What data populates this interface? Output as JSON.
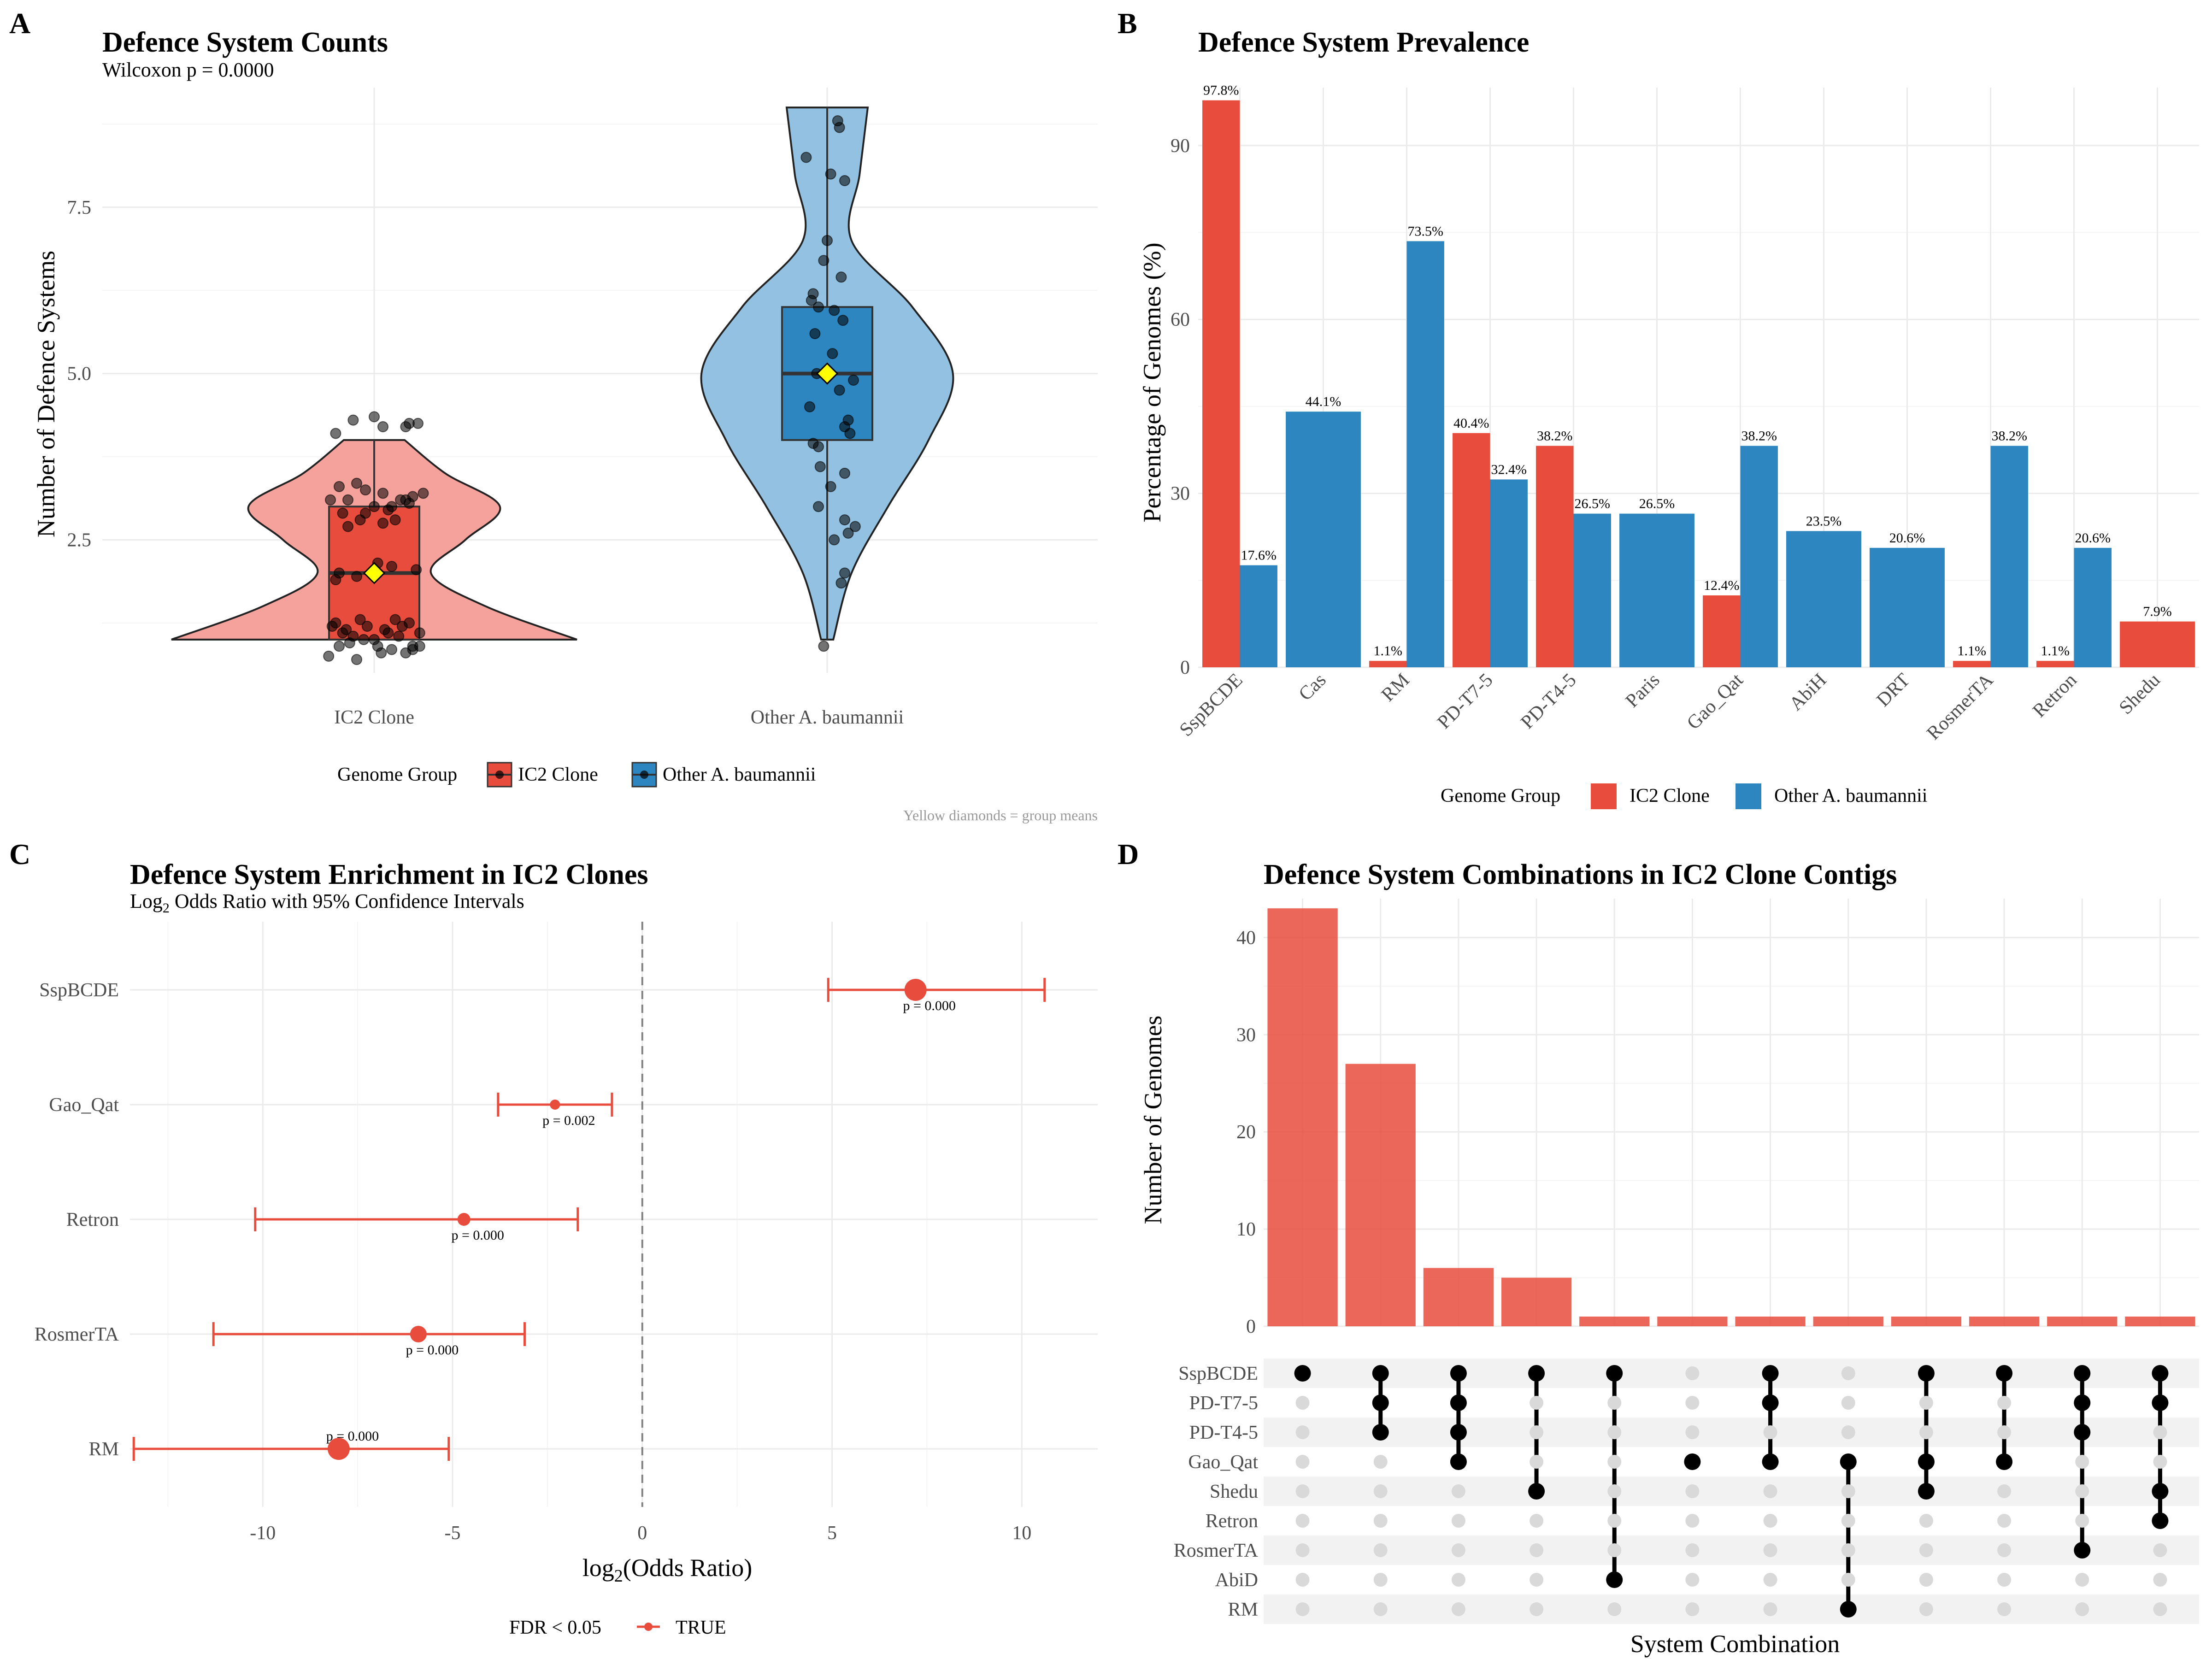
{
  "colors": {
    "ic2": "#e74c3c",
    "other": "#2e86c1",
    "ic2_violin": "#f4a29b",
    "other_violin": "#93c1e2",
    "mean": "#ffff00",
    "dot": "#000000"
  },
  "chart_data": [
    {
      "id": "A",
      "type": "violin",
      "tag": "A",
      "title": "Defence System Counts",
      "subtitle": "Wilcoxon p = 0.0000",
      "xlabel": "",
      "ylabel": "Number of Defence Systems",
      "ylim": [
        0.5,
        9.3
      ],
      "yticks": [
        2.5,
        5.0,
        7.5
      ],
      "ytick_labels": [
        "2.5",
        "5.0",
        "7.5"
      ],
      "categories": [
        "IC2 Clone",
        "Other A. baumannii"
      ],
      "legend_title": "Genome Group",
      "legend_position": "bottom",
      "caption": "Yellow diamonds = group means",
      "groups": [
        {
          "name": "IC2 Clone",
          "min": 1,
          "q1": 1,
          "median": 2,
          "q3": 3,
          "max": 4,
          "mean": 2.0,
          "violin_y": [
            1.0,
            1.5,
            2.0,
            2.5,
            3.0,
            3.5,
            4.0
          ],
          "violin_w": [
            1.0,
            0.55,
            0.28,
            0.45,
            0.62,
            0.35,
            0.15
          ],
          "points": [
            4.3,
            4.2,
            4.35,
            4.25,
            4.1,
            4.2,
            4.25,
            3.3,
            3.2,
            3.1,
            3.35,
            3.25,
            3.0,
            3.05,
            3.1,
            2.9,
            3.15,
            2.8,
            3.2,
            3.0,
            3.1,
            2.95,
            2.7,
            2.8,
            2.75,
            2.9,
            3.1,
            2.0,
            2.1,
            1.9,
            2.15,
            2.05,
            1.95,
            1.2,
            1.1,
            1.3,
            1.15,
            1.05,
            0.9,
            0.95,
            1.25,
            1.1,
            1.0,
            1.2,
            0.85,
            0.9,
            0.75,
            0.8,
            0.7,
            0.8,
            1.15,
            1.3,
            1.1,
            0.9,
            1.0,
            1.2,
            1.25,
            0.85,
            0.9,
            1.05
          ],
          "jitter": [
            -0.12,
            0.05,
            0.0,
            0.2,
            -0.22,
            0.18,
            0.25,
            -0.2,
            0.05,
            -0.15,
            -0.1,
            -0.05,
            0.1,
            0.2,
            0.15,
            -0.18,
            0.22,
            -0.08,
            0.28,
            0.0,
            -0.25,
            0.08,
            -0.15,
            0.12,
            0.05,
            -0.05,
            0.18,
            -0.2,
            0.1,
            -0.22,
            0.02,
            0.24,
            -0.1,
            -0.24,
            -0.18,
            -0.08,
            0.06,
            0.14,
            0.22,
            -0.14,
            0.2,
            0.26,
            0.0,
            -0.04,
            0.1,
            -0.2,
            -0.26,
            0.04,
            -0.1,
            0.18,
            -0.16,
            0.12,
            0.08,
            0.26,
            -0.06,
            0.16,
            -0.22,
            0.22,
            0.02,
            -0.12
          ]
        },
        {
          "name": "Other A. baumannii",
          "min": 1,
          "q1": 4,
          "median": 5,
          "q3": 6,
          "max": 9,
          "mean": 5.0,
          "violin_y": [
            1.0,
            2.0,
            3.0,
            4.0,
            5.0,
            6.0,
            7.0,
            8.0,
            9.0
          ],
          "violin_w": [
            0.03,
            0.12,
            0.3,
            0.5,
            0.62,
            0.42,
            0.12,
            0.16,
            0.2
          ],
          "points": [
            8.8,
            8.7,
            8.25,
            8.0,
            7.9,
            7.0,
            6.7,
            6.45,
            6.2,
            6.0,
            5.95,
            6.1,
            5.8,
            5.6,
            5.3,
            5.0,
            4.9,
            4.75,
            4.5,
            4.3,
            4.2,
            4.1,
            3.95,
            3.9,
            3.6,
            3.5,
            3.3,
            3.0,
            2.8,
            2.7,
            2.6,
            2.5,
            2.0,
            1.85,
            0.9
          ],
          "jitter": [
            0.06,
            0.07,
            -0.12,
            0.02,
            0.1,
            0.0,
            -0.02,
            0.08,
            -0.08,
            -0.05,
            0.04,
            -0.09,
            0.09,
            -0.07,
            0.03,
            -0.06,
            0.15,
            0.07,
            -0.1,
            0.12,
            0.1,
            0.13,
            -0.08,
            -0.05,
            -0.04,
            0.1,
            0.02,
            -0.05,
            0.1,
            0.16,
            0.12,
            0.04,
            0.1,
            0.08,
            -0.02
          ]
        }
      ]
    },
    {
      "id": "B",
      "type": "bar",
      "tag": "B",
      "title": "Defence System Prevalence",
      "xlabel": "",
      "ylabel": "Percentage of Genomes (%)",
      "ylim": [
        0,
        100
      ],
      "yticks": [
        0,
        30,
        60,
        90
      ],
      "legend_title": "Genome Group",
      "legend_position": "bottom",
      "categories": [
        "SspBCDE",
        "Cas",
        "RM",
        "PD-T7-5",
        "PD-T4-5",
        "Paris",
        "Gao_Qat",
        "AbiH",
        "DRT",
        "RosmerTA",
        "Retron",
        "Shedu"
      ],
      "series": [
        {
          "name": "IC2 Clone",
          "values": [
            97.8,
            null,
            1.1,
            40.4,
            38.2,
            null,
            12.4,
            null,
            null,
            1.1,
            1.1,
            7.9
          ],
          "labels": [
            "97.8%",
            "",
            "1.1%",
            "40.4%",
            "38.2%",
            "",
            "12.4%",
            "",
            "",
            "1.1%",
            "1.1%",
            "7.9%"
          ]
        },
        {
          "name": "Other A. baumannii",
          "values": [
            17.6,
            44.1,
            73.5,
            32.4,
            26.5,
            26.5,
            38.2,
            23.5,
            20.6,
            38.2,
            20.6,
            null
          ],
          "labels": [
            "17.6%",
            "44.1%",
            "73.5%",
            "32.4%",
            "26.5%",
            "26.5%",
            "38.2%",
            "23.5%",
            "20.6%",
            "38.2%",
            "20.6%",
            ""
          ]
        }
      ]
    },
    {
      "id": "C",
      "type": "forest",
      "tag": "C",
      "title": "Defence System Enrichment in IC2 Clones",
      "subtitle_main": "Log",
      "subtitle_sub": "2",
      "subtitle_rest": " Odds Ratio with 95% Confidence Intervals",
      "xlabel_main": "log",
      "xlabel_sub": "2",
      "xlabel_rest": "(Odds Ratio)",
      "xlim": [
        -13.5,
        12
      ],
      "xticks": [
        -10,
        -5,
        0,
        5,
        10
      ],
      "xtick_labels": [
        "-10",
        "-5",
        "0",
        "5",
        "10"
      ],
      "legend_title": "FDR < 0.05",
      "legend_entry": "TRUE",
      "rows": [
        {
          "label": "SspBCDE",
          "or": 7.2,
          "lo": 4.9,
          "hi": 10.6,
          "p": "p = 0.000",
          "size": 24
        },
        {
          "label": "Gao_Qat",
          "or": -2.3,
          "lo": -3.8,
          "hi": -0.8,
          "p": "p = 0.002",
          "size": 11
        },
        {
          "label": "Retron",
          "or": -4.7,
          "lo": -10.2,
          "hi": -1.7,
          "p": "p = 0.000",
          "size": 14
        },
        {
          "label": "RosmerTA",
          "or": -5.9,
          "lo": -11.3,
          "hi": -3.1,
          "p": "p = 0.000",
          "size": 18
        },
        {
          "label": "RM",
          "or": -8.0,
          "lo": -13.4,
          "hi": -5.1,
          "p": "p = 0.000",
          "size": 24
        }
      ]
    },
    {
      "id": "D",
      "type": "upset",
      "tag": "D",
      "title": "Defence System Combinations in IC2 Clone Contigs",
      "ylabel": "Number of Genomes",
      "xlabel": "System Combination",
      "ylim": [
        0,
        44
      ],
      "yticks": [
        0,
        10,
        20,
        30,
        40
      ],
      "sets": [
        "SspBCDE",
        "PD-T7-5",
        "PD-T4-5",
        "Gao_Qat",
        "Shedu",
        "Retron",
        "RosmerTA",
        "AbiD",
        "RM"
      ],
      "values": [
        43,
        27,
        6,
        5,
        1,
        1,
        1,
        1,
        1,
        1,
        1,
        1
      ],
      "combinations": [
        [
          "SspBCDE"
        ],
        [
          "SspBCDE",
          "PD-T7-5",
          "PD-T4-5"
        ],
        [
          "SspBCDE",
          "PD-T7-5",
          "PD-T4-5",
          "Gao_Qat"
        ],
        [
          "SspBCDE",
          "Shedu"
        ],
        [
          "SspBCDE",
          "AbiD"
        ],
        [
          "Gao_Qat"
        ],
        [
          "SspBCDE",
          "PD-T7-5",
          "Gao_Qat"
        ],
        [
          "Gao_Qat",
          "RM"
        ],
        [
          "SspBCDE",
          "Gao_Qat",
          "Shedu"
        ],
        [
          "SspBCDE",
          "Gao_Qat"
        ],
        [
          "SspBCDE",
          "PD-T7-5",
          "PD-T4-5",
          "RosmerTA"
        ],
        [
          "SspBCDE",
          "PD-T7-5",
          "Shedu",
          "Retron"
        ]
      ]
    }
  ]
}
